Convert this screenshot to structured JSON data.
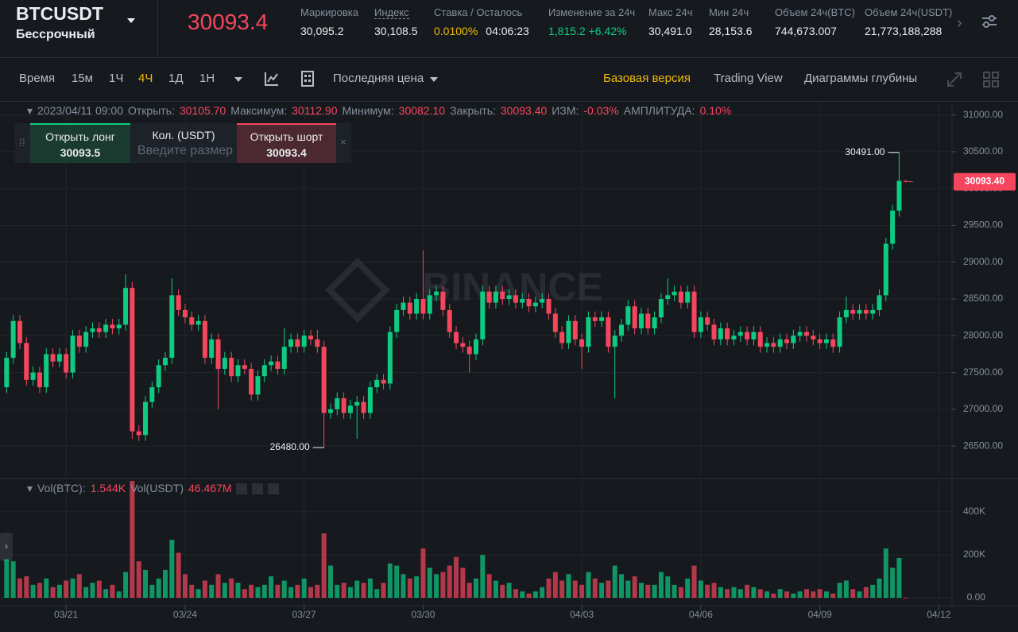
{
  "header": {
    "symbol": "BTCUSDT",
    "contract": "Бессрочный",
    "last_price": "30093.4",
    "stats": [
      {
        "label": "Маркировка",
        "value": "30,095.2"
      },
      {
        "label": "Индекс",
        "value": "30,108.5"
      },
      {
        "label": "Ставка / Осталось",
        "value": "0.0100%",
        "color": "#f0b90b",
        "extra": "04:06:23"
      },
      {
        "label": "Изменение за 24ч",
        "value": "1,815.2 +6.42%",
        "color": "#0ecb81"
      },
      {
        "label": "Макс 24ч",
        "value": "30,491.0"
      },
      {
        "label": "Мин 24ч",
        "value": "28,153.6"
      },
      {
        "label": "Объем 24ч(BTC)",
        "value": "744,673.007"
      },
      {
        "label": "Объем 24ч(USDT)",
        "value": "21,773,188,288"
      }
    ]
  },
  "toolbar": {
    "intervals": [
      "Время",
      "15м",
      "1Ч",
      "4Ч",
      "1Д",
      "1Н"
    ],
    "active_interval": "4Ч",
    "price_type": "Последняя цена",
    "views": [
      "Базовая версия",
      "Trading View",
      "Диаграммы глубины"
    ],
    "active_view": "Базовая версия"
  },
  "order_panel": {
    "long_label": "Открыть лонг",
    "long_price": "30093.5",
    "qty_label": "Кол. (USDT)",
    "qty_placeholder": "Введите размер",
    "short_label": "Открыть шорт",
    "short_price": "30093.4"
  },
  "chart_data": [
    {
      "type": "candlestick",
      "watermark": "BINANCE",
      "up_color": "#0ecb81",
      "down_color": "#f6465d",
      "info": {
        "time": "2023/04/11 09:00",
        "fields": [
          {
            "label": "Открыть:",
            "value": "30105.70"
          },
          {
            "label": "Максимум:",
            "value": "30112.90"
          },
          {
            "label": "Минимум:",
            "value": "30082.10"
          },
          {
            "label": "Закрыть:",
            "value": "30093.40"
          },
          {
            "label": "ИЗМ:",
            "value": "-0.03%"
          },
          {
            "label": "АМПЛИТУДА:",
            "value": "0.10%"
          }
        ]
      },
      "last_price_label": "30093.40",
      "max_label": "30491.00",
      "min_label": "26480.00",
      "xlim": [
        -1,
        143
      ],
      "xticks": [
        {
          "value": 9,
          "label": "03/21"
        },
        {
          "value": 27,
          "label": "03/24"
        },
        {
          "value": 45,
          "label": "03/27"
        },
        {
          "value": 63,
          "label": "03/30"
        },
        {
          "value": 87,
          "label": "04/03"
        },
        {
          "value": 105,
          "label": "04/06"
        },
        {
          "value": 123,
          "label": "04/09"
        },
        {
          "value": 141,
          "label": "04/12"
        }
      ],
      "ylim": [
        26080,
        31180
      ],
      "yticks": [
        {
          "value": 26500,
          "label": "26500.00"
        },
        {
          "value": 27000,
          "label": "27000.00"
        },
        {
          "value": 27500,
          "label": "27500.00"
        },
        {
          "value": 28000,
          "label": "28000.00"
        },
        {
          "value": 28500,
          "label": "28500.00"
        },
        {
          "value": 29000,
          "label": "29000.00"
        },
        {
          "value": 29500,
          "label": "29500.00"
        },
        {
          "value": 30000,
          "label": "30000.00"
        },
        {
          "value": 30500,
          "label": "30500.00"
        },
        {
          "value": 31000,
          "label": "31000.00"
        }
      ],
      "open": [
        27300,
        27700,
        28200,
        27900,
        27400,
        27500,
        27300,
        27750,
        27650,
        27750,
        27500,
        28000,
        27850,
        28050,
        28100,
        28050,
        28150,
        28100,
        28150,
        28650,
        26700,
        26650,
        27100,
        27300,
        27600,
        27700,
        28550,
        28350,
        28250,
        28150,
        28200,
        27700,
        27950,
        27550,
        27700,
        27450,
        27600,
        27550,
        27200,
        27450,
        27600,
        27650,
        27550,
        27850,
        27950,
        27850,
        28000,
        27950,
        27850,
        26950,
        27000,
        27150,
        26950,
        27050,
        27100,
        26950,
        27300,
        27400,
        27350,
        28050,
        28350,
        28450,
        28300,
        28500,
        28300,
        28550,
        28600,
        28350,
        28050,
        27900,
        27850,
        27750,
        27950,
        28600,
        28450,
        28600,
        28500,
        28550,
        28450,
        28500,
        28400,
        28450,
        28500,
        28300,
        28050,
        27900,
        28200,
        27950,
        27850,
        28250,
        28200,
        28250,
        27850,
        28000,
        28150,
        28400,
        28100,
        28300,
        28100,
        28250,
        28500,
        28550,
        28600,
        28450,
        28600,
        28050,
        28250,
        28150,
        27950,
        28100,
        27950,
        28000,
        28050,
        27950,
        28050,
        27850,
        27900,
        27850,
        27950,
        27900,
        28000,
        28050,
        28000,
        27950,
        27900,
        27950,
        27850,
        28250,
        28350,
        28300,
        28350,
        28300,
        28350,
        28550,
        29250,
        29700,
        30105.7
      ],
      "high": [
        27780,
        28280,
        28280,
        27980,
        27580,
        27580,
        27830,
        27830,
        27830,
        27830,
        28080,
        28080,
        28130,
        28180,
        28180,
        28230,
        28230,
        28230,
        28836,
        28730,
        26780,
        27180,
        27380,
        27680,
        27780,
        28780,
        28630,
        28430,
        28330,
        28280,
        28280,
        28030,
        28030,
        27780,
        27780,
        27680,
        27680,
        27630,
        27530,
        27680,
        27730,
        27730,
        28100,
        28030,
        28030,
        28080,
        28080,
        28080,
        27930,
        27080,
        27230,
        27230,
        27130,
        27180,
        27180,
        27380,
        27480,
        27480,
        28130,
        28430,
        28530,
        28530,
        28580,
        29160,
        28630,
        28680,
        28680,
        28430,
        28130,
        27980,
        27930,
        28030,
        28680,
        28680,
        28680,
        28680,
        28630,
        28630,
        28580,
        28580,
        28530,
        28580,
        28580,
        28380,
        28130,
        28280,
        28280,
        28030,
        28330,
        28330,
        28330,
        28330,
        28080,
        28230,
        28480,
        28480,
        28380,
        28380,
        28330,
        28580,
        28780,
        28680,
        28680,
        28680,
        28680,
        28330,
        28330,
        28230,
        28180,
        28180,
        28080,
        28130,
        28130,
        28130,
        28130,
        27980,
        27980,
        28030,
        28030,
        28080,
        28130,
        28130,
        28080,
        28030,
        28030,
        28030,
        28330,
        28530,
        28430,
        28430,
        28430,
        28430,
        28630,
        29330,
        29780,
        30491,
        30112.9
      ],
      "low": [
        27220,
        27620,
        27820,
        27320,
        27320,
        27220,
        27220,
        27570,
        27570,
        27420,
        27420,
        27770,
        27770,
        27970,
        27970,
        27970,
        28020,
        28020,
        28070,
        26600,
        26570,
        26570,
        27020,
        27220,
        27520,
        27620,
        28270,
        28170,
        28070,
        28070,
        27620,
        27620,
        27000,
        27470,
        27370,
        27370,
        27470,
        27120,
        27120,
        27370,
        27520,
        27470,
        27470,
        27770,
        27770,
        27770,
        27870,
        27770,
        26480,
        26870,
        26920,
        26870,
        26870,
        26600,
        26870,
        26870,
        27220,
        27270,
        27270,
        27970,
        28270,
        28220,
        28220,
        28220,
        28220,
        28470,
        28270,
        27970,
        27820,
        27770,
        27500,
        27670,
        27870,
        28370,
        28370,
        28420,
        28420,
        28370,
        28370,
        28320,
        28320,
        28370,
        28220,
        27970,
        27820,
        27820,
        27870,
        27550,
        27770,
        28120,
        28120,
        27770,
        27150,
        27920,
        28070,
        28020,
        28020,
        28020,
        28020,
        28170,
        28420,
        28470,
        28370,
        28370,
        27970,
        27970,
        28070,
        27870,
        27870,
        27870,
        27870,
        27920,
        27870,
        27870,
        27770,
        27770,
        27770,
        27770,
        27820,
        27820,
        27920,
        27920,
        27870,
        27820,
        27820,
        27770,
        27770,
        28170,
        28220,
        28220,
        28220,
        28220,
        28270,
        28470,
        29170,
        29620,
        30082.1
      ],
      "close": [
        27700,
        28200,
        27900,
        27400,
        27500,
        27300,
        27750,
        27650,
        27750,
        27500,
        28000,
        27850,
        28050,
        28100,
        28050,
        28150,
        28100,
        28150,
        28650,
        26700,
        26650,
        27100,
        27300,
        27600,
        27700,
        28550,
        28350,
        28250,
        28150,
        28200,
        27700,
        27950,
        27550,
        27700,
        27450,
        27600,
        27550,
        27200,
        27450,
        27600,
        27650,
        27550,
        27850,
        27950,
        27850,
        28000,
        27950,
        27850,
        26950,
        27000,
        27150,
        26950,
        27050,
        27100,
        26950,
        27300,
        27400,
        27350,
        28050,
        28350,
        28450,
        28300,
        28500,
        28300,
        28550,
        28600,
        28350,
        28050,
        27900,
        27850,
        27750,
        27950,
        28600,
        28450,
        28600,
        28500,
        28550,
        28450,
        28500,
        28400,
        28450,
        28500,
        28300,
        28050,
        27900,
        28200,
        27950,
        27850,
        28250,
        28200,
        28250,
        27850,
        28000,
        28150,
        28400,
        28100,
        28300,
        28100,
        28250,
        28500,
        28550,
        28600,
        28450,
        28600,
        28050,
        28250,
        28150,
        27950,
        28100,
        27950,
        28000,
        28050,
        27950,
        28050,
        27850,
        27900,
        27850,
        27950,
        27900,
        28000,
        28050,
        28000,
        27950,
        27900,
        27950,
        27850,
        28250,
        28350,
        28300,
        28350,
        28300,
        28350,
        28550,
        29250,
        29700,
        30105.7,
        30093.4
      ]
    },
    {
      "type": "bar",
      "legend": [
        {
          "name": "Vol(BTC):",
          "value": "1.544K"
        },
        {
          "name": "Vol(USDT)",
          "value": "46.467M"
        }
      ],
      "ylim": [
        -37000,
        544000
      ],
      "yticks": [
        {
          "value": 0,
          "label": "0.00"
        },
        {
          "value": 200000,
          "label": "200K"
        },
        {
          "value": 400000,
          "label": "400K"
        }
      ],
      "values": [
        180000,
        170000,
        90000,
        100000,
        60000,
        70000,
        90000,
        50000,
        60000,
        80000,
        90000,
        110000,
        50000,
        70000,
        80000,
        40000,
        60000,
        30000,
        120000,
        560000,
        170000,
        130000,
        60000,
        90000,
        130000,
        270000,
        210000,
        110000,
        60000,
        40000,
        80000,
        60000,
        110000,
        70000,
        90000,
        70000,
        40000,
        60000,
        50000,
        60000,
        100000,
        60000,
        80000,
        50000,
        60000,
        90000,
        50000,
        60000,
        300000,
        150000,
        60000,
        70000,
        50000,
        80000,
        70000,
        90000,
        40000,
        70000,
        160000,
        150000,
        110000,
        90000,
        100000,
        230000,
        140000,
        110000,
        120000,
        150000,
        190000,
        140000,
        70000,
        90000,
        200000,
        110000,
        80000,
        60000,
        70000,
        40000,
        30000,
        20000,
        30000,
        50000,
        90000,
        120000,
        80000,
        110000,
        80000,
        60000,
        120000,
        90000,
        70000,
        80000,
        150000,
        110000,
        80000,
        100000,
        70000,
        60000,
        60000,
        120000,
        100000,
        60000,
        50000,
        90000,
        150000,
        80000,
        60000,
        70000,
        50000,
        40000,
        50000,
        40000,
        60000,
        50000,
        40000,
        30000,
        20000,
        40000,
        30000,
        20000,
        30000,
        40000,
        30000,
        40000,
        30000,
        20000,
        70000,
        80000,
        40000,
        30000,
        50000,
        60000,
        90000,
        230000,
        140000,
        185000,
        1544
      ]
    }
  ]
}
